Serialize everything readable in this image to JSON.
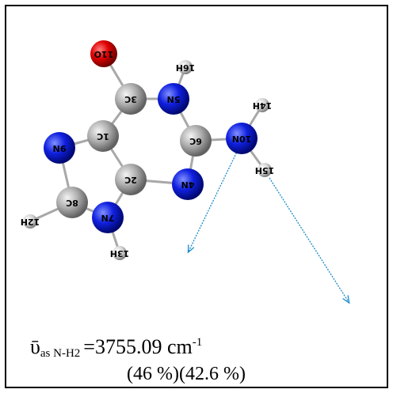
{
  "atoms": [
    {
      "label": "11O"
    },
    {
      "label": "3C"
    },
    {
      "label": "16H"
    },
    {
      "label": "5N"
    },
    {
      "label": "14H"
    },
    {
      "label": "1C"
    },
    {
      "label": "6C"
    },
    {
      "label": "10N"
    },
    {
      "label": "9N"
    },
    {
      "label": "2C"
    },
    {
      "label": "4N"
    },
    {
      "label": "15H"
    },
    {
      "label": "8C"
    },
    {
      "label": "7N"
    },
    {
      "label": "12H"
    },
    {
      "label": "13H"
    }
  ],
  "caption": {
    "symbol": "ῡ",
    "subscript": "as N-H2",
    "value": "=3755.09 cm",
    "superscript": "-1",
    "contributions": "(46 %)(42.6 %)"
  }
}
